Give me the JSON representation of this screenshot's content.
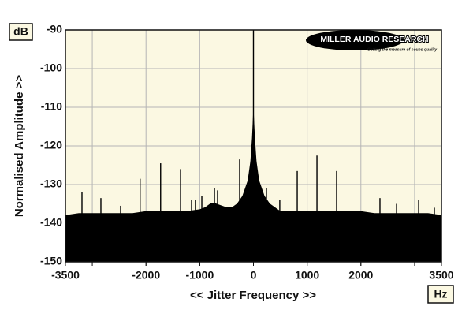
{
  "chart_data": {
    "type": "spectrum",
    "y_unit": "dB",
    "x_unit": "Hz",
    "ylabel": "Normalised Amplitude >>",
    "xlabel": "<< Jitter Frequency >>",
    "logo": {
      "name": "MILLER AUDIO RESEARCH",
      "tagline": "Getting the measure of sound quality"
    },
    "xlim": [
      -3500,
      3500
    ],
    "ylim": [
      -150,
      -90
    ],
    "xticks": [
      -3500,
      -2000,
      -1000,
      0,
      1000,
      2000,
      3500
    ],
    "xgrid": [
      -3000,
      -2000,
      -1000,
      0,
      1000,
      2000,
      3000
    ],
    "yticks": [
      -90,
      -100,
      -110,
      -120,
      -130,
      -140,
      -150
    ],
    "grid": true,
    "background": "#fbf8e2",
    "color": "#000000",
    "series": [
      {
        "kind": "area",
        "x": [
          -3500,
          -3250,
          -3000,
          -2750,
          -2500,
          -2250,
          -2000,
          -1750,
          -1500,
          -1250,
          -1000,
          -900,
          -800,
          -700,
          -600,
          -500,
          -400,
          -300,
          -200,
          -100,
          -50,
          -20,
          0,
          20,
          50,
          100,
          200,
          300,
          400,
          500,
          750,
          1000,
          1250,
          1500,
          1750,
          2000,
          2250,
          2500,
          2750,
          3000,
          3250,
          3500
        ],
        "values": [
          -138,
          -137.5,
          -137.5,
          -137.5,
          -137.5,
          -137.5,
          -137,
          -137,
          -137,
          -137,
          -136.5,
          -136,
          -135,
          -135,
          -135.5,
          -136,
          -136,
          -135,
          -133,
          -129,
          -124,
          -118,
          -112,
          -118,
          -124,
          -129,
          -133,
          -135,
          -136,
          -137,
          -137,
          -137,
          -137,
          -137,
          -137,
          -137,
          -137.5,
          -137.5,
          -137.5,
          -137.5,
          -137.5,
          -138
        ]
      },
      {
        "kind": "spikes",
        "x": [
          -3192,
          -2840,
          -2473,
          -2110,
          -1728,
          -1357,
          -1152,
          -1080,
          -961,
          -726,
          -668,
          -257,
          0,
          242,
          490,
          815,
          1182,
          1548,
          2355,
          2664,
          3075,
          3368
        ],
        "values": [
          -132,
          -133.5,
          -135.5,
          -128.5,
          -124.5,
          -126,
          -134,
          -134,
          -133,
          -131,
          -131.5,
          -123.5,
          -90,
          -131,
          -134,
          -126.5,
          -122.5,
          -126.5,
          -133.5,
          -135,
          -134,
          -136
        ]
      }
    ]
  }
}
